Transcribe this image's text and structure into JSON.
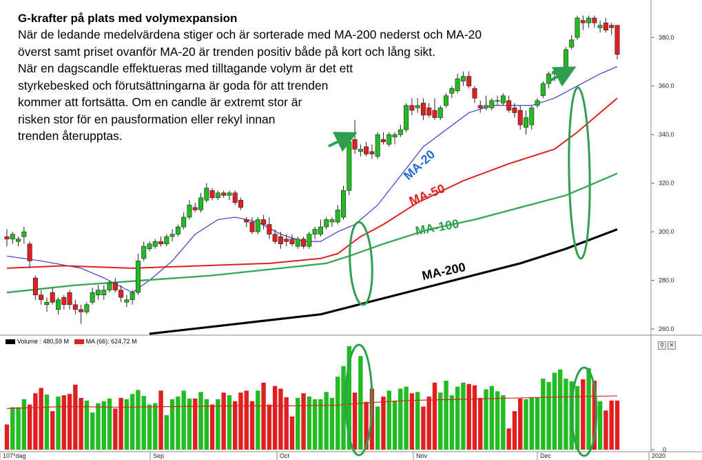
{
  "annotation": {
    "title": "G-krafter på plats med volymexpansion",
    "lines": [
      "När de ledande medelvärdena stiger och är sorterade med MA-200 nederst och MA-20",
      "överst samt priset ovanför MA-20 är trenden positiv både på kort och lång sikt.",
      "När en dagscandle effektueras med tilltagande volym är det ett",
      "styrkebesked och förutsättningarna är goda för att trenden",
      "kommer att fortsätta. Om en candle är extremt stor är",
      "risken stor för en pausformation eller rekyl innan",
      "trenden återupptas."
    ]
  },
  "volume_legend": {
    "volume_label": "Volume : 480,59 M",
    "ma_label": "MA (66): 624,72 M"
  },
  "colors": {
    "up": "#22bb22",
    "down": "#e02020",
    "ma20": "#3a3ad0",
    "ma50": "#e02020",
    "ma100": "#3aa85a",
    "ma200": "#000000",
    "ellipse": "#2e9e4f",
    "arrow": "#2e9e4f"
  },
  "icons": [
    "search-icon",
    "close-icon"
  ],
  "chart_data": [
    {
      "type": "candlestick",
      "title": "",
      "ylim": [
        258,
        392
      ],
      "y_ticks": [
        260,
        280,
        300,
        320,
        340,
        360,
        380
      ],
      "y_tick_labels": [
        "260.0",
        "280.0",
        "300.0",
        "320.0",
        "340.0",
        "360.0",
        "380.0"
      ],
      "x_labels": [
        "107*dag",
        "Sep",
        "Oct",
        "Nov",
        "Dec",
        "2020"
      ],
      "candles": [
        {
          "o": 298,
          "h": 301,
          "l": 294,
          "c": 297
        },
        {
          "o": 297,
          "h": 300,
          "l": 295,
          "c": 299
        },
        {
          "o": 296,
          "h": 298,
          "l": 294,
          "c": 297
        },
        {
          "o": 298,
          "h": 302,
          "l": 295,
          "c": 300
        },
        {
          "o": 295,
          "h": 296,
          "l": 285,
          "c": 288
        },
        {
          "o": 281,
          "h": 282,
          "l": 272,
          "c": 274
        },
        {
          "o": 274,
          "h": 276,
          "l": 270,
          "c": 272
        },
        {
          "o": 270,
          "h": 273,
          "l": 267,
          "c": 271
        },
        {
          "o": 275,
          "h": 277,
          "l": 270,
          "c": 271
        },
        {
          "o": 268,
          "h": 273,
          "l": 266,
          "c": 272
        },
        {
          "o": 273,
          "h": 274,
          "l": 268,
          "c": 270
        },
        {
          "o": 275,
          "h": 276,
          "l": 268,
          "c": 270
        },
        {
          "o": 270,
          "h": 272,
          "l": 266,
          "c": 268
        },
        {
          "o": 268,
          "h": 270,
          "l": 262,
          "c": 267
        },
        {
          "o": 267,
          "h": 271,
          "l": 266,
          "c": 270
        },
        {
          "o": 271,
          "h": 277,
          "l": 270,
          "c": 275
        },
        {
          "o": 274,
          "h": 278,
          "l": 272,
          "c": 276
        },
        {
          "o": 274,
          "h": 278,
          "l": 272,
          "c": 276
        },
        {
          "o": 276,
          "h": 280,
          "l": 275,
          "c": 279
        },
        {
          "o": 279,
          "h": 281,
          "l": 275,
          "c": 276
        },
        {
          "o": 276,
          "h": 278,
          "l": 271,
          "c": 273
        },
        {
          "o": 271,
          "h": 274,
          "l": 269,
          "c": 272
        },
        {
          "o": 272,
          "h": 276,
          "l": 270,
          "c": 275
        },
        {
          "o": 275,
          "h": 291,
          "l": 274,
          "c": 288
        },
        {
          "o": 289,
          "h": 296,
          "l": 288,
          "c": 294
        },
        {
          "o": 293,
          "h": 296,
          "l": 292,
          "c": 295
        },
        {
          "o": 294,
          "h": 297,
          "l": 293,
          "c": 296
        },
        {
          "o": 296,
          "h": 298,
          "l": 294,
          "c": 295
        },
        {
          "o": 295,
          "h": 299,
          "l": 294,
          "c": 298
        },
        {
          "o": 298,
          "h": 301,
          "l": 296,
          "c": 299
        },
        {
          "o": 299,
          "h": 303,
          "l": 298,
          "c": 302
        },
        {
          "o": 302,
          "h": 308,
          "l": 301,
          "c": 306
        },
        {
          "o": 306,
          "h": 313,
          "l": 305,
          "c": 311
        },
        {
          "o": 310,
          "h": 312,
          "l": 308,
          "c": 309
        },
        {
          "o": 309,
          "h": 316,
          "l": 308,
          "c": 314
        },
        {
          "o": 313,
          "h": 320,
          "l": 312,
          "c": 318
        },
        {
          "o": 317,
          "h": 318,
          "l": 313,
          "c": 314
        },
        {
          "o": 314,
          "h": 317,
          "l": 313,
          "c": 316
        },
        {
          "o": 316,
          "h": 317,
          "l": 314,
          "c": 315
        },
        {
          "o": 315,
          "h": 317,
          "l": 313,
          "c": 316
        },
        {
          "o": 316,
          "h": 317,
          "l": 311,
          "c": 312
        },
        {
          "o": 313,
          "h": 314,
          "l": 309,
          "c": 310
        },
        {
          "o": 305,
          "h": 306,
          "l": 302,
          "c": 304
        },
        {
          "o": 304,
          "h": 306,
          "l": 299,
          "c": 300
        },
        {
          "o": 300,
          "h": 306,
          "l": 299,
          "c": 305
        },
        {
          "o": 305,
          "h": 307,
          "l": 301,
          "c": 303
        },
        {
          "o": 303,
          "h": 306,
          "l": 297,
          "c": 299
        },
        {
          "o": 299,
          "h": 301,
          "l": 295,
          "c": 296
        },
        {
          "o": 298,
          "h": 300,
          "l": 293,
          "c": 295
        },
        {
          "o": 297,
          "h": 299,
          "l": 294,
          "c": 296
        },
        {
          "o": 297,
          "h": 299,
          "l": 294,
          "c": 295
        },
        {
          "o": 294,
          "h": 298,
          "l": 293,
          "c": 297
        },
        {
          "o": 297,
          "h": 298,
          "l": 293,
          "c": 294
        },
        {
          "o": 294,
          "h": 300,
          "l": 293,
          "c": 299
        },
        {
          "o": 299,
          "h": 302,
          "l": 297,
          "c": 301
        },
        {
          "o": 299,
          "h": 305,
          "l": 298,
          "c": 302
        },
        {
          "o": 302,
          "h": 306,
          "l": 301,
          "c": 305
        },
        {
          "o": 304,
          "h": 306,
          "l": 302,
          "c": 305
        },
        {
          "o": 304,
          "h": 311,
          "l": 303,
          "c": 309
        },
        {
          "o": 306,
          "h": 319,
          "l": 305,
          "c": 317
        },
        {
          "o": 317,
          "h": 339,
          "l": 315,
          "c": 337
        },
        {
          "o": 338,
          "h": 346,
          "l": 332,
          "c": 334
        },
        {
          "o": 333,
          "h": 336,
          "l": 331,
          "c": 334
        },
        {
          "o": 335,
          "h": 337,
          "l": 331,
          "c": 332
        },
        {
          "o": 333,
          "h": 336,
          "l": 330,
          "c": 332
        },
        {
          "o": 331,
          "h": 341,
          "l": 330,
          "c": 340
        },
        {
          "o": 338,
          "h": 341,
          "l": 336,
          "c": 337
        },
        {
          "o": 336,
          "h": 341,
          "l": 335,
          "c": 340
        },
        {
          "o": 339,
          "h": 341,
          "l": 336,
          "c": 340
        },
        {
          "o": 340,
          "h": 344,
          "l": 339,
          "c": 342
        },
        {
          "o": 342,
          "h": 353,
          "l": 341,
          "c": 352
        },
        {
          "o": 352,
          "h": 355,
          "l": 348,
          "c": 350
        },
        {
          "o": 351,
          "h": 355,
          "l": 349,
          "c": 352
        },
        {
          "o": 353,
          "h": 355,
          "l": 346,
          "c": 348
        },
        {
          "o": 351,
          "h": 353,
          "l": 347,
          "c": 348
        },
        {
          "o": 350,
          "h": 355,
          "l": 346,
          "c": 347
        },
        {
          "o": 347,
          "h": 352,
          "l": 346,
          "c": 351
        },
        {
          "o": 352,
          "h": 357,
          "l": 351,
          "c": 356
        },
        {
          "o": 357,
          "h": 360,
          "l": 355,
          "c": 359
        },
        {
          "o": 358,
          "h": 365,
          "l": 357,
          "c": 363
        },
        {
          "o": 362,
          "h": 366,
          "l": 360,
          "c": 364
        },
        {
          "o": 364,
          "h": 366,
          "l": 359,
          "c": 360
        },
        {
          "o": 359,
          "h": 360,
          "l": 353,
          "c": 355
        },
        {
          "o": 352,
          "h": 354,
          "l": 349,
          "c": 351
        },
        {
          "o": 351,
          "h": 356,
          "l": 350,
          "c": 352
        },
        {
          "o": 351,
          "h": 355,
          "l": 350,
          "c": 354
        },
        {
          "o": 354,
          "h": 356,
          "l": 352,
          "c": 354
        },
        {
          "o": 353,
          "h": 357,
          "l": 352,
          "c": 356
        },
        {
          "o": 354,
          "h": 356,
          "l": 349,
          "c": 350
        },
        {
          "o": 351,
          "h": 353,
          "l": 347,
          "c": 349
        },
        {
          "o": 350,
          "h": 352,
          "l": 342,
          "c": 344
        },
        {
          "o": 343,
          "h": 350,
          "l": 340,
          "c": 347
        },
        {
          "o": 344,
          "h": 352,
          "l": 342,
          "c": 351
        },
        {
          "o": 352,
          "h": 355,
          "l": 351,
          "c": 354
        },
        {
          "o": 356,
          "h": 362,
          "l": 355,
          "c": 361
        },
        {
          "o": 361,
          "h": 366,
          "l": 359,
          "c": 365
        },
        {
          "o": 365,
          "h": 367,
          "l": 362,
          "c": 366
        },
        {
          "o": 364,
          "h": 367,
          "l": 361,
          "c": 366
        },
        {
          "o": 367,
          "h": 376,
          "l": 366,
          "c": 375
        },
        {
          "o": 376,
          "h": 381,
          "l": 375,
          "c": 379
        },
        {
          "o": 380,
          "h": 389,
          "l": 379,
          "c": 388
        },
        {
          "o": 387,
          "h": 389,
          "l": 383,
          "c": 386
        },
        {
          "o": 386,
          "h": 389,
          "l": 384,
          "c": 388
        },
        {
          "o": 388,
          "h": 389,
          "l": 384,
          "c": 386
        },
        {
          "o": 384,
          "h": 387,
          "l": 382,
          "c": 385
        },
        {
          "o": 386,
          "h": 388,
          "l": 382,
          "c": 383
        },
        {
          "o": 385,
          "h": 386,
          "l": 381,
          "c": 384
        },
        {
          "o": 385,
          "h": 385,
          "l": 371,
          "c": 373
        }
      ],
      "series": [
        {
          "name": "MA-20",
          "values": [
            [
              0,
              290
            ],
            [
              6,
              288
            ],
            [
              13,
              285
            ],
            [
              17,
              281
            ],
            [
              22,
              275
            ],
            [
              25,
              280
            ],
            [
              29,
              288
            ],
            [
              33,
              299
            ],
            [
              37,
              305
            ],
            [
              40,
              306
            ],
            [
              44,
              304
            ],
            [
              48,
              299
            ],
            [
              52,
              296
            ],
            [
              55,
              296
            ],
            [
              58,
              300
            ],
            [
              61,
              303
            ],
            [
              65,
              311
            ],
            [
              69,
              323
            ],
            [
              73,
              335
            ],
            [
              77,
              342
            ],
            [
              81,
              349
            ],
            [
              85,
              352
            ],
            [
              88,
              352
            ],
            [
              92,
              352
            ],
            [
              96,
              355
            ],
            [
              100,
              360
            ],
            [
              104,
              365
            ],
            [
              107,
              368
            ]
          ]
        },
        {
          "name": "MA-50",
          "values": [
            [
              0,
              285
            ],
            [
              10,
              286
            ],
            [
              22,
              285
            ],
            [
              34,
              286
            ],
            [
              46,
              287
            ],
            [
              55,
              289
            ],
            [
              58,
              291
            ],
            [
              62,
              298
            ],
            [
              66,
              303
            ],
            [
              72,
              312
            ],
            [
              80,
              321
            ],
            [
              88,
              328
            ],
            [
              96,
              334
            ],
            [
              100,
              341
            ],
            [
              104,
              349
            ],
            [
              107,
              355
            ]
          ]
        },
        {
          "name": "MA-100",
          "values": [
            [
              0,
              275
            ],
            [
              12,
              278
            ],
            [
              24,
              280
            ],
            [
              36,
              282
            ],
            [
              48,
              285
            ],
            [
              56,
              287
            ],
            [
              60,
              290
            ],
            [
              66,
              295
            ],
            [
              74,
              301
            ],
            [
              82,
              305
            ],
            [
              90,
              310
            ],
            [
              98,
              315
            ],
            [
              103,
              320
            ],
            [
              107,
              324
            ]
          ]
        },
        {
          "name": "MA-200",
          "values": [
            [
              25,
              258
            ],
            [
              40,
              262
            ],
            [
              55,
              266
            ],
            [
              60,
              269
            ],
            [
              70,
              275
            ],
            [
              80,
              281
            ],
            [
              90,
              287
            ],
            [
              98,
              293
            ],
            [
              107,
              301
            ]
          ]
        }
      ],
      "ma_labels": [
        "MA-20",
        "MA-50",
        "MA-100",
        "MA-200"
      ]
    },
    {
      "type": "bar",
      "title": "",
      "ylim": [
        0,
        1580
      ],
      "y_ticks": [
        0
      ],
      "y_tick_labels": [
        "0"
      ],
      "values": [
        380,
        640,
        640,
        760,
        680,
        850,
        930,
        830,
        580,
        800,
        820,
        840,
        980,
        780,
        740,
        560,
        700,
        730,
        770,
        620,
        780,
        760,
        840,
        900,
        810,
        680,
        700,
        890,
        520,
        760,
        800,
        890,
        770,
        770,
        870,
        760,
        680,
        760,
        860,
        820,
        730,
        860,
        890,
        730,
        890,
        1010,
        680,
        960,
        920,
        790,
        500,
        780,
        850,
        800,
        760,
        760,
        870,
        780,
        1100,
        1260,
        1560,
        860,
        1410,
        720,
        920,
        650,
        800,
        890,
        740,
        920,
        950,
        850,
        870,
        650,
        800,
        1010,
        860,
        1040,
        820,
        950,
        1010,
        990,
        970,
        780,
        910,
        960,
        880,
        820,
        320,
        580,
        770,
        760,
        790,
        780,
        1070,
        1020,
        1160,
        1210,
        1070,
        1030,
        960,
        1060,
        1230,
        1040,
        730,
        590,
        740,
        740
      ],
      "ma_values": [
        [
          0,
          620
        ],
        [
          10,
          650
        ],
        [
          20,
          640
        ],
        [
          30,
          650
        ],
        [
          40,
          660
        ],
        [
          50,
          660
        ],
        [
          58,
          670
        ],
        [
          62,
          700
        ],
        [
          70,
          740
        ],
        [
          80,
          760
        ],
        [
          90,
          780
        ],
        [
          100,
          800
        ],
        [
          107,
          810
        ]
      ],
      "legend": [
        "Volume : 480,59 M",
        "MA (66): 624,72 M"
      ]
    }
  ]
}
